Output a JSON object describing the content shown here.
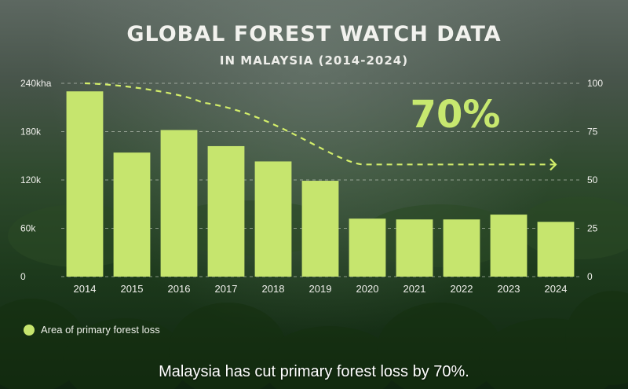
{
  "header": {
    "title": "GLOBAL FOREST WATCH DATA",
    "subtitle": "IN MALAYSIA (2014-2024)"
  },
  "callout": "70%",
  "legend": {
    "label": "Area of primary forest loss"
  },
  "caption": "Malaysia has cut primary forest loss by 70%.",
  "colors": {
    "bar": "#c6e56e",
    "trend": "#d3ee6a",
    "callout": "#c7e86f"
  },
  "chart_data": {
    "type": "bar",
    "categories": [
      "2014",
      "2015",
      "2016",
      "2017",
      "2018",
      "2019",
      "2020",
      "2021",
      "2022",
      "2023",
      "2024"
    ],
    "values": [
      230000,
      154000,
      182000,
      162000,
      143000,
      119000,
      72000,
      71000,
      71000,
      77000,
      68000
    ],
    "ylim": [
      0,
      240000
    ],
    "yticks": [
      0,
      60000,
      120000,
      180000,
      240000
    ],
    "ytick_labels": [
      "0",
      "60k",
      "120k",
      "180k",
      "240kha"
    ],
    "y2lim": [
      0,
      100
    ],
    "y2ticks": [
      0,
      25,
      50,
      75,
      100
    ],
    "y2tick_labels": [
      "0",
      "25",
      "50",
      "75",
      "100"
    ],
    "grid": true,
    "legend_position": "bottom-left",
    "trend": {
      "style": "dashed-arrow",
      "x": [
        2014,
        2016.5,
        2019.9,
        2024
      ],
      "y2": [
        100,
        90,
        58,
        58
      ]
    }
  }
}
